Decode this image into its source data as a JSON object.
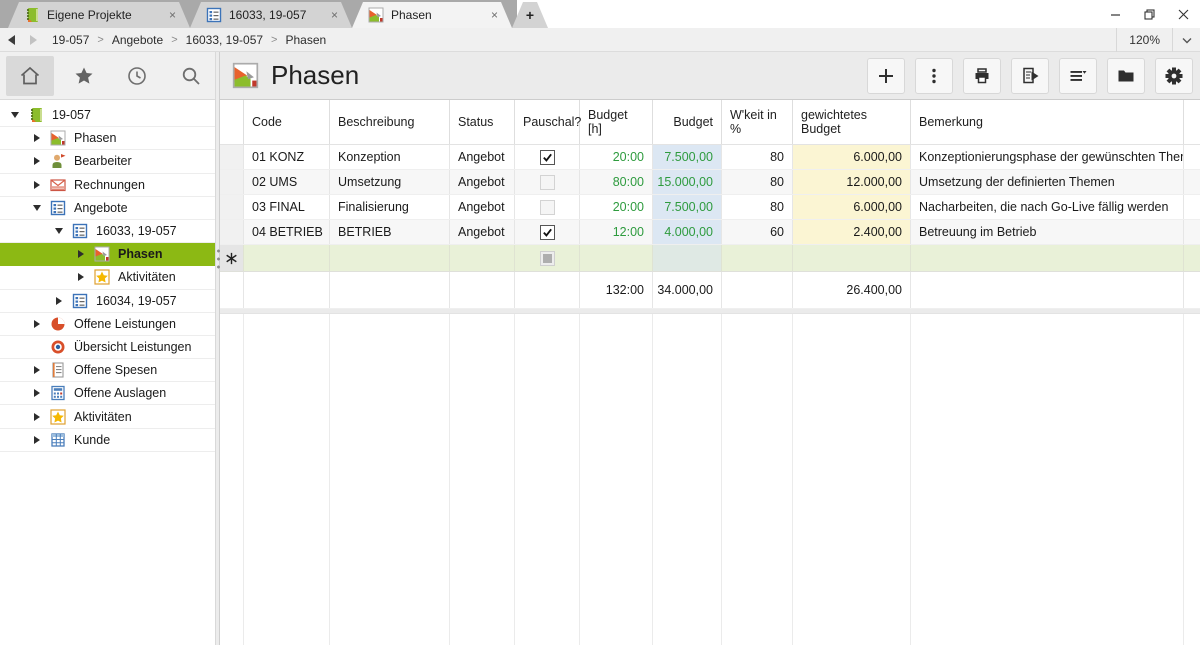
{
  "titlebar": {
    "tabs": [
      {
        "label": "Eigene Projekte",
        "icon": "projects-book-icon",
        "active": false
      },
      {
        "label": "16033, 19-057",
        "icon": "offer-list-icon",
        "active": false
      },
      {
        "label": "Phasen",
        "icon": "phases-icon",
        "active": true
      }
    ],
    "new_tab_glyph": "+",
    "tab_close_glyph": "×",
    "window_controls": {
      "minimize": "minimize",
      "maximize": "restore",
      "close": "close"
    }
  },
  "breadcrumb": {
    "items": [
      "19-057",
      "Angebote",
      "16033, 19-057",
      "Phasen"
    ],
    "separator": ">",
    "zoom_level": "120%"
  },
  "sidebar": {
    "nav": [
      {
        "name": "home",
        "active": true
      },
      {
        "name": "favorites",
        "active": false
      },
      {
        "name": "recent",
        "active": false
      },
      {
        "name": "search",
        "active": false
      }
    ],
    "tree": [
      {
        "label": "19-057",
        "icon": "project-book-icon",
        "level": 0,
        "expander": "expanded",
        "selected": false
      },
      {
        "label": "Phasen",
        "icon": "phases-icon",
        "level": 1,
        "expander": "collapsed",
        "selected": false
      },
      {
        "label": "Bearbeiter",
        "icon": "person-icon",
        "level": 1,
        "expander": "collapsed",
        "selected": false
      },
      {
        "label": "Rechnungen",
        "icon": "invoice-icon",
        "level": 1,
        "expander": "collapsed",
        "selected": false
      },
      {
        "label": "Angebote",
        "icon": "offer-list-icon",
        "level": 1,
        "expander": "expanded",
        "selected": false
      },
      {
        "label": "16033, 19-057",
        "icon": "offer-list-icon",
        "level": 2,
        "expander": "expanded",
        "selected": false
      },
      {
        "label": "Phasen",
        "icon": "phases-icon",
        "level": 3,
        "expander": "collapsed",
        "selected": true
      },
      {
        "label": "Aktivitäten",
        "icon": "star-icon",
        "level": 3,
        "expander": "collapsed",
        "selected": false
      },
      {
        "label": "16034, 19-057",
        "icon": "offer-list-icon",
        "level": 2,
        "expander": "collapsed",
        "selected": false
      },
      {
        "label": "Offene Leistungen",
        "icon": "pie-icon",
        "level": 1,
        "expander": "collapsed",
        "selected": false
      },
      {
        "label": "Übersicht Leistungen",
        "icon": "target-icon",
        "level": 1,
        "expander": "none",
        "selected": false
      },
      {
        "label": "Offene Spesen",
        "icon": "expense-list-icon",
        "level": 1,
        "expander": "collapsed",
        "selected": false
      },
      {
        "label": "Offene Auslagen",
        "icon": "calculator-icon",
        "level": 1,
        "expander": "collapsed",
        "selected": false
      },
      {
        "label": "Aktivitäten",
        "icon": "star-icon",
        "level": 1,
        "expander": "collapsed",
        "selected": false
      },
      {
        "label": "Kunde",
        "icon": "customer-table-icon",
        "level": 1,
        "expander": "collapsed",
        "selected": false
      }
    ]
  },
  "main": {
    "title": "Phasen",
    "toolbar": [
      {
        "name": "add"
      },
      {
        "name": "more-actions"
      },
      {
        "name": "print"
      },
      {
        "name": "export-report"
      },
      {
        "name": "view-options"
      },
      {
        "name": "folder"
      },
      {
        "name": "settings"
      }
    ],
    "table": {
      "columns": [
        "",
        "Code",
        "Beschreibung",
        "Status",
        "Pauschal?",
        "Budget [h]",
        "Budget",
        "W'keit in %",
        "gewichtetes Budget",
        "Bemerkung"
      ],
      "rows": [
        {
          "code": "01 KONZ",
          "beschreibung": "Konzeption",
          "status": "Angebot",
          "pauschal": true,
          "budget_h": "20:00",
          "budget": "7.500,00",
          "wkeit": "80",
          "gew_budget": "6.000,00",
          "bemerkung": "Konzeptionierungsphase der gewünschten Themen"
        },
        {
          "code": "02 UMS",
          "beschreibung": "Umsetzung",
          "status": "Angebot",
          "pauschal": false,
          "budget_h": "80:00",
          "budget": "15.000,00",
          "wkeit": "80",
          "gew_budget": "12.000,00",
          "bemerkung": "Umsetzung der definierten Themen"
        },
        {
          "code": "03 FINAL",
          "beschreibung": "Finalisierung",
          "status": "Angebot",
          "pauschal": false,
          "budget_h": "20:00",
          "budget": "7.500,00",
          "wkeit": "80",
          "gew_budget": "6.000,00",
          "bemerkung": "Nacharbeiten, die nach Go-Live fällig werden"
        },
        {
          "code": "04 BETRIEB",
          "beschreibung": "BETRIEB",
          "status": "Angebot",
          "pauschal": true,
          "budget_h": "12:00",
          "budget": "4.000,00",
          "wkeit": "60",
          "gew_budget": "2.400,00",
          "bemerkung": "Betreuung im Betrieb"
        }
      ],
      "new_row_glyph": "✳",
      "totals": {
        "budget_h": "132:00",
        "budget": "34.000,00",
        "gewichtetes_budget": "26.400,00"
      }
    }
  },
  "colors": {
    "accent_green": "#8cb914",
    "value_green": "#2e9b3e",
    "budget_col_bg": "#dce7f3",
    "weighted_col_bg": "#fbf5d3",
    "new_row_bg": "#e9f1d8"
  }
}
